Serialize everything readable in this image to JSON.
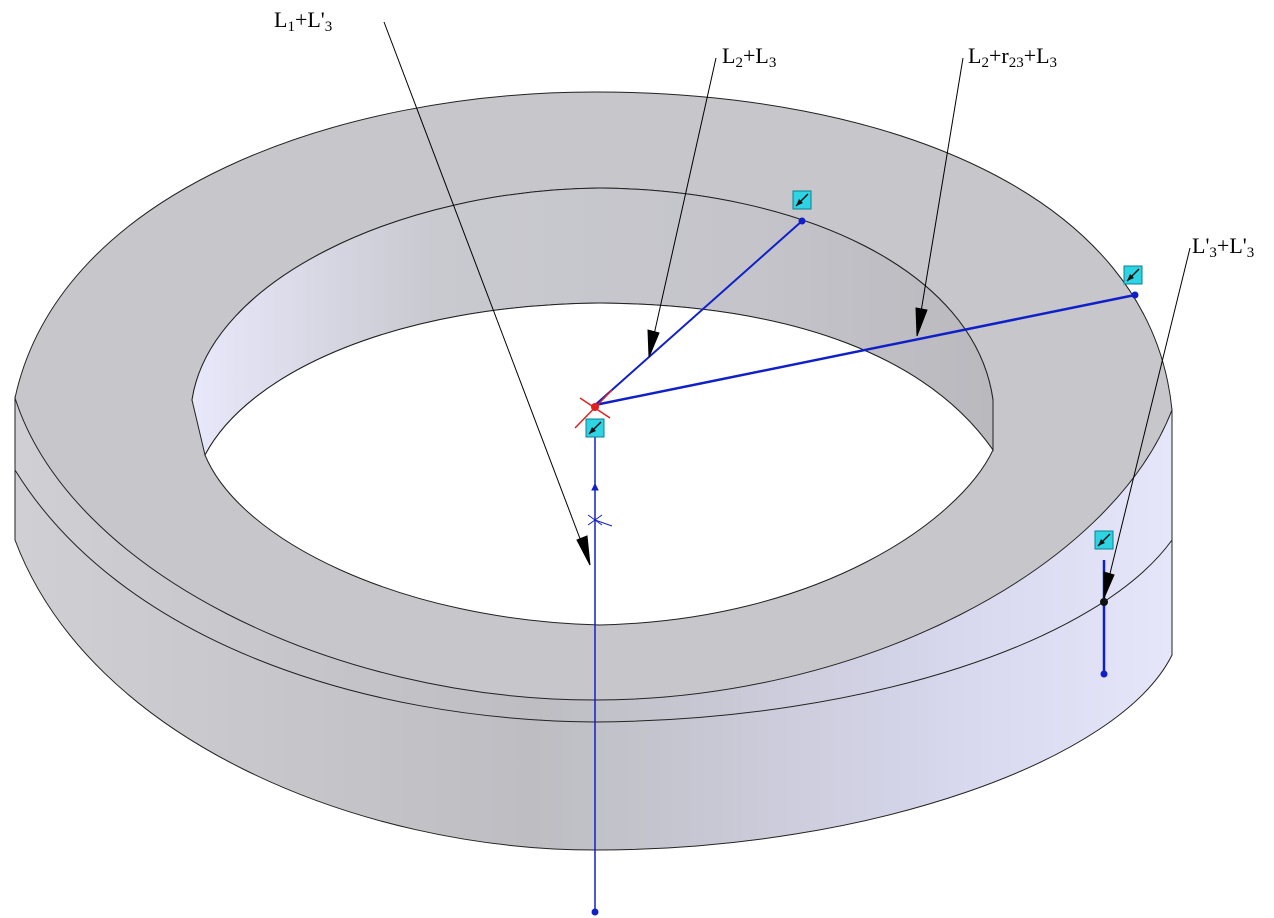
{
  "labels": {
    "l1": {
      "main1": "L",
      "sub1": "1",
      "mid": "+L'",
      "sub2": "3"
    },
    "l2": {
      "main1": "L",
      "sub1": "2",
      "mid": "+L",
      "sub2": "3"
    },
    "l3": {
      "main1": "L",
      "sub1": "2",
      "mid": "+r",
      "sub2": "23",
      "mid2": "+L",
      "sub3": "3"
    },
    "l4": {
      "main1": "L'",
      "sub1": "3",
      "mid": "+L'",
      "sub2": "3"
    }
  },
  "colors": {
    "ring_top": "#c6c6cb",
    "ring_side": "#c3c3c9",
    "inner_wall_light": "#e8e8fb",
    "sketch": "#1020c8",
    "handle_fill": "#2fd4e4",
    "origin_arrow": "#e02020",
    "leader": "#000000"
  }
}
